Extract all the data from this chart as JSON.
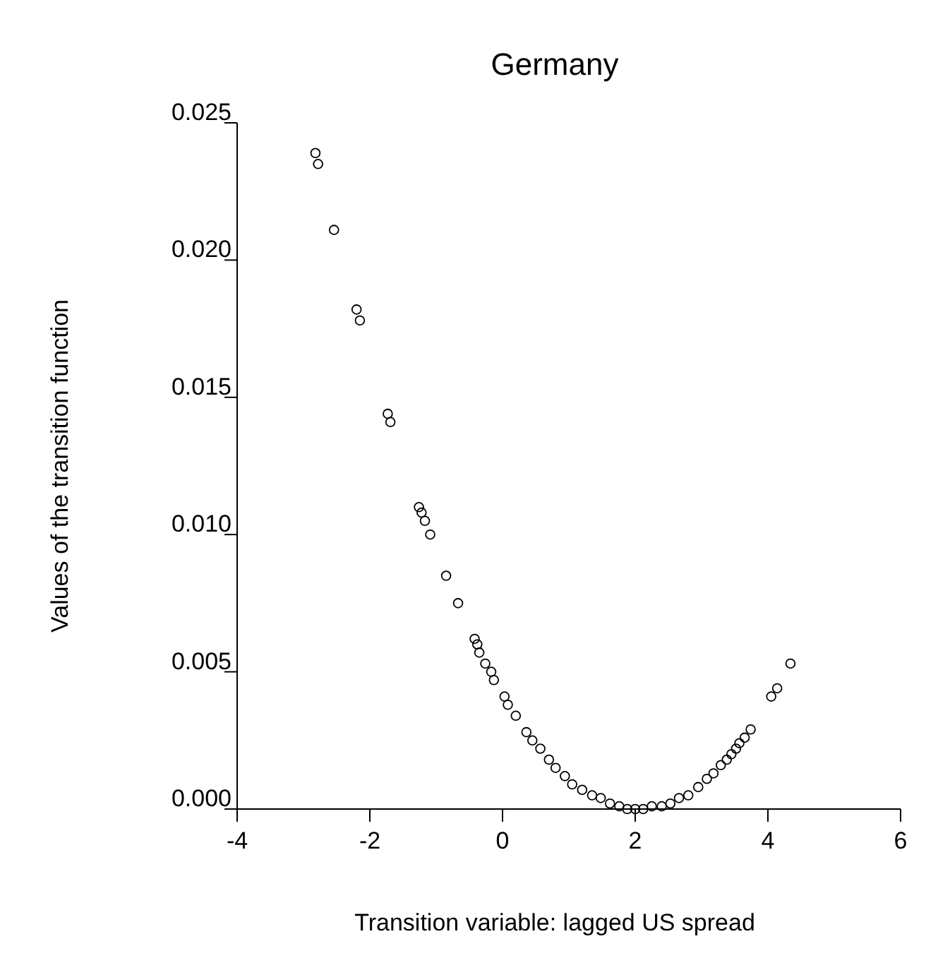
{
  "chart_data": {
    "type": "scatter",
    "title": "Germany",
    "xlabel": "Transition variable: lagged US spread",
    "ylabel": "Values of the transition function",
    "x": [
      -2.82,
      -2.78,
      -2.54,
      -2.2,
      -2.15,
      -1.73,
      -1.69,
      -1.26,
      -1.22,
      -1.17,
      -1.09,
      -0.85,
      -0.67,
      -0.42,
      -0.38,
      -0.35,
      -0.26,
      -0.17,
      -0.13,
      0.03,
      0.08,
      0.2,
      0.36,
      0.45,
      0.57,
      0.7,
      0.8,
      0.94,
      1.05,
      1.2,
      1.35,
      1.48,
      1.62,
      1.76,
      1.88,
      2.0,
      2.12,
      2.25,
      2.4,
      2.53,
      2.66,
      2.8,
      2.95,
      3.08,
      3.18,
      3.29,
      3.38,
      3.45,
      3.52,
      3.57,
      3.65,
      3.74,
      4.05,
      4.14,
      4.34
    ],
    "values": [
      0.0239,
      0.0235,
      0.0211,
      0.0182,
      0.0178,
      0.0144,
      0.0141,
      0.011,
      0.0108,
      0.0105,
      0.01,
      0.0085,
      0.0075,
      0.0062,
      0.006,
      0.0057,
      0.0053,
      0.005,
      0.0047,
      0.0041,
      0.0038,
      0.0034,
      0.0028,
      0.0025,
      0.0022,
      0.0018,
      0.0015,
      0.0012,
      0.0009,
      0.0007,
      0.0005,
      0.0004,
      0.0002,
      0.0001,
      0.0,
      0.0,
      0.0,
      0.0001,
      0.0001,
      0.0002,
      0.0004,
      0.0005,
      0.0008,
      0.0011,
      0.0013,
      0.0016,
      0.0018,
      0.002,
      0.0022,
      0.0024,
      0.0026,
      0.0029,
      0.0041,
      0.0044,
      0.0053
    ],
    "color": "#000000",
    "marker": "circle",
    "grid": false,
    "xlim": [
      -4,
      6
    ],
    "xticks": [
      -4,
      -2,
      0,
      2,
      4,
      6
    ],
    "ylim": [
      0,
      0.025
    ],
    "yticks": [
      {
        "value": 0,
        "label": "0.000"
      },
      {
        "value": 0.005,
        "label": "0.005"
      },
      {
        "value": 0.01,
        "label": "0.010"
      },
      {
        "value": 0.015,
        "label": "0.015"
      },
      {
        "value": 0.02,
        "label": "0.020"
      },
      {
        "value": 0.025,
        "label": "0.025"
      }
    ]
  }
}
